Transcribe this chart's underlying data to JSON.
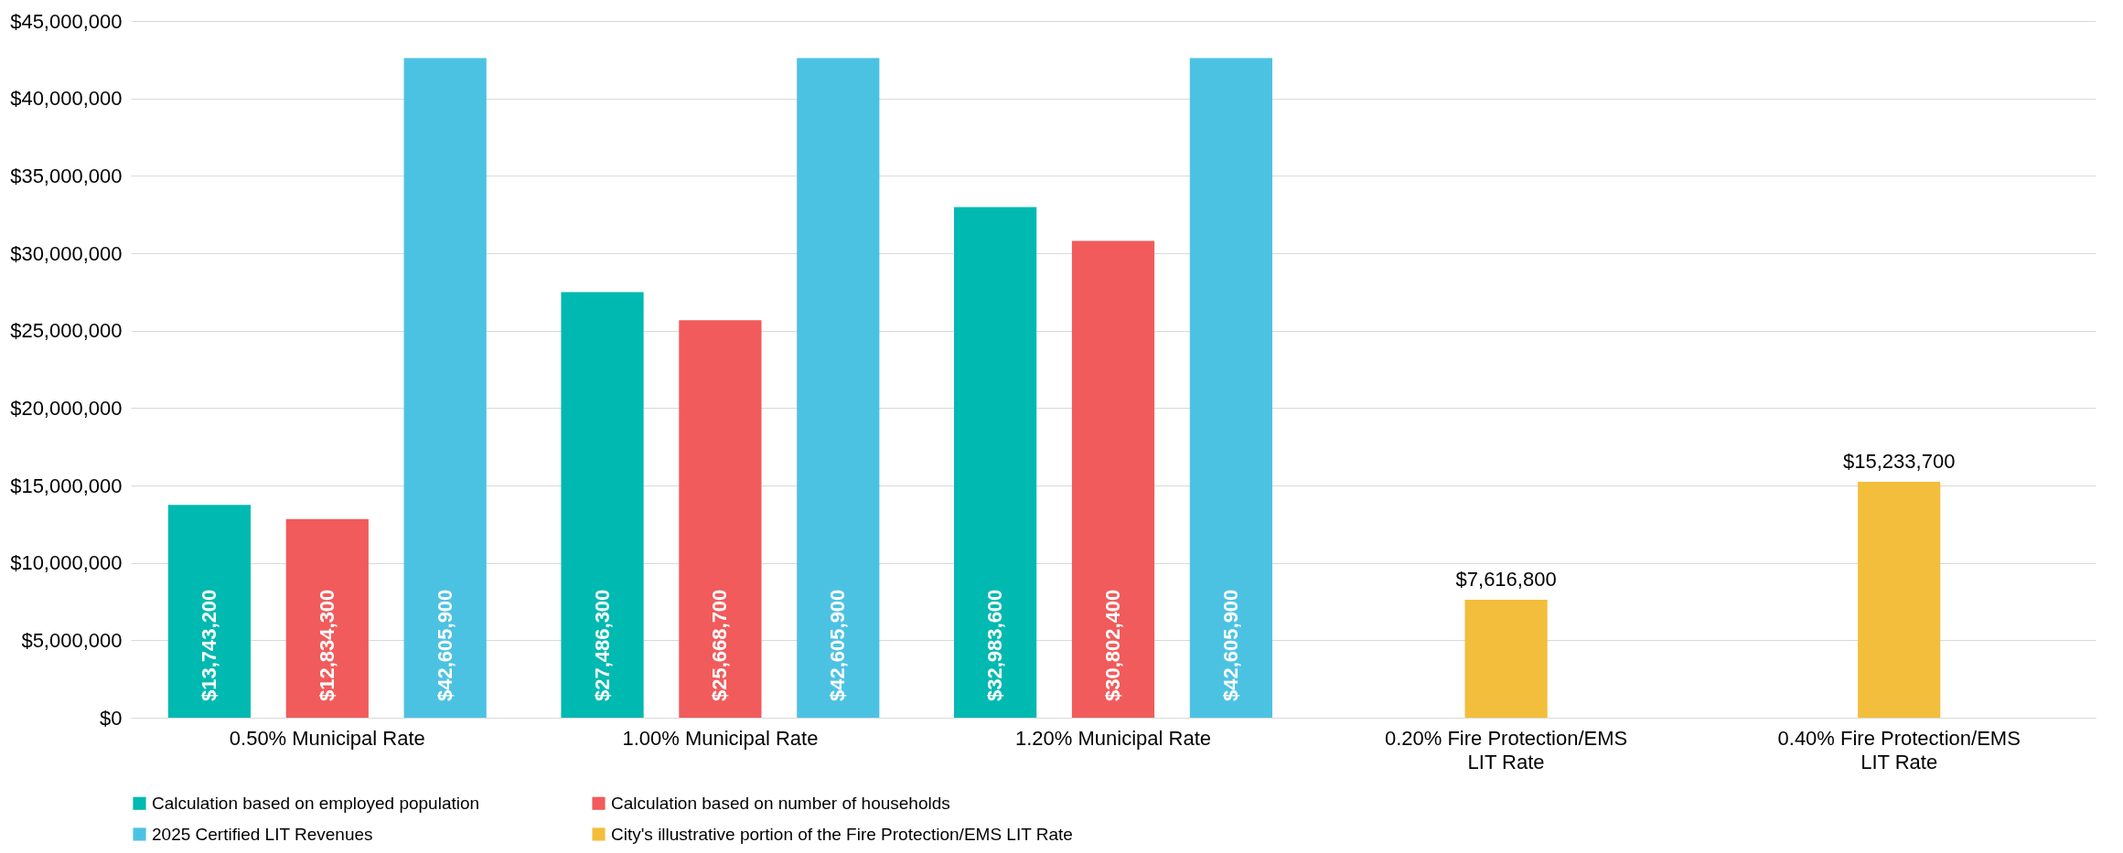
{
  "chart_data": {
    "type": "bar",
    "categories": [
      "0.50% Municipal Rate",
      "1.00% Municipal Rate",
      "1.20% Municipal Rate",
      "0.20% Fire Protection/EMS LIT Rate",
      "0.40% Fire Protection/EMS LIT Rate"
    ],
    "series": [
      {
        "name": "Calculation based on employed population",
        "color": "#00b9b1",
        "values": [
          13743200,
          27486300,
          32983600,
          null,
          null
        ],
        "value_labels": [
          "$13,743,200",
          "$27,486,300",
          "$32,983,600",
          null,
          null
        ]
      },
      {
        "name": "Calculation based on number of households",
        "color": "#f15b5b",
        "values": [
          12834300,
          25668700,
          30802400,
          null,
          null
        ],
        "value_labels": [
          "$12,834,300",
          "$25,668,700",
          "$30,802,400",
          null,
          null
        ]
      },
      {
        "name": "2025 Certified LIT Revenues",
        "color": "#4cc2e3",
        "values": [
          42605900,
          42605900,
          42605900,
          null,
          null
        ],
        "value_labels": [
          "$42,605,900",
          "$42,605,900",
          "$42,605,900",
          null,
          null
        ]
      },
      {
        "name": "City's illustrative portion of the Fire Protection/EMS LIT Rate",
        "color": "#f2be3b",
        "values": [
          null,
          null,
          null,
          7616800,
          15233700
        ],
        "value_labels": [
          null,
          null,
          null,
          "$7,616,800",
          "$15,233,700"
        ]
      }
    ],
    "ylim": [
      0,
      45000000
    ],
    "yticks": [
      {
        "value": 0,
        "label": "$0"
      },
      {
        "value": 5000000,
        "label": "$5,000,000"
      },
      {
        "value": 10000000,
        "label": "$10,000,000"
      },
      {
        "value": 15000000,
        "label": "$15,000,000"
      },
      {
        "value": 20000000,
        "label": "$20,000,000"
      },
      {
        "value": 25000000,
        "label": "$25,000,000"
      },
      {
        "value": 30000000,
        "label": "$30,000,000"
      },
      {
        "value": 35000000,
        "label": "$35,000,000"
      },
      {
        "value": 40000000,
        "label": "$40,000,000"
      },
      {
        "value": 45000000,
        "label": "$45,000,000"
      }
    ],
    "grid": "y",
    "legend": "bottom"
  }
}
